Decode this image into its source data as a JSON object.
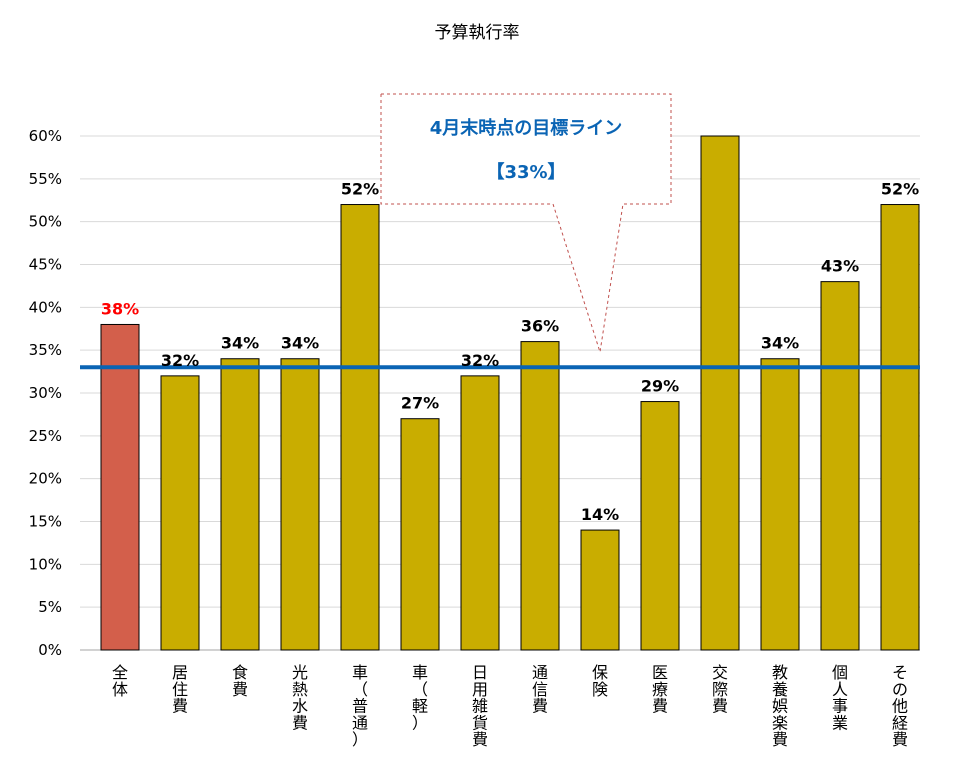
{
  "chart_data": {
    "type": "bar",
    "title": "予算執行率",
    "categories": [
      "全体",
      "居住費",
      "食費",
      "光熱水費",
      "車（普通）",
      "車（軽）",
      "日用雑貨費",
      "通信費",
      "保険",
      "医療費",
      "交際費",
      "教養娯楽費",
      "個人事業",
      "その他経費"
    ],
    "values": [
      38,
      32,
      34,
      34,
      52,
      27,
      32,
      36,
      14,
      29,
      60,
      34,
      43,
      52
    ],
    "data_labels": [
      "38%",
      "32%",
      "34%",
      "34%",
      "52%",
      "27%",
      "32%",
      "36%",
      "14%",
      "29%",
      "",
      "34%",
      "43%",
      "52%"
    ],
    "yticks": [
      "0%",
      "5%",
      "10%",
      "15%",
      "20%",
      "25%",
      "30%",
      "35%",
      "40%",
      "45%",
      "50%",
      "55%",
      "60%"
    ],
    "ylim": [
      0,
      60
    ],
    "grid": true,
    "colors": {
      "highlight": "#d35f4b",
      "bar": "#c9ad00",
      "target_line": "#0a64b4",
      "highlight_label": "#ff0000"
    },
    "target_line": {
      "value": 33,
      "label_line1": "4月末時点の目標ライン",
      "label_line2": "【33%】"
    }
  }
}
